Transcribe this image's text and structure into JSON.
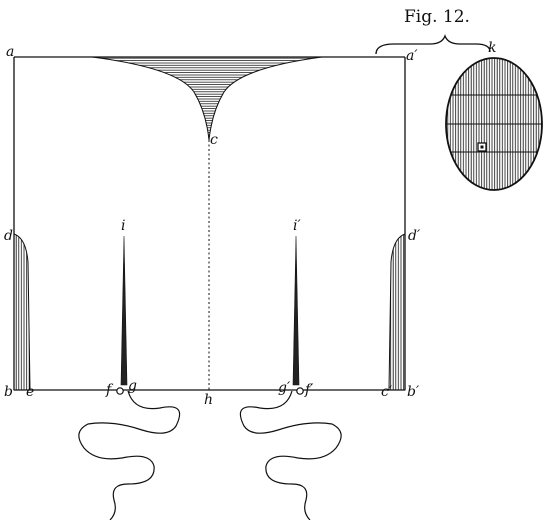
{
  "figure": {
    "title": "Fig. 12."
  },
  "labels": {
    "a": "a",
    "a_prime": "a′",
    "b": "b",
    "b_prime": "b′",
    "c": "c",
    "d": "d",
    "d_prime": "d′",
    "e": "e",
    "c_prime": "c′",
    "f": "f",
    "f_prime": "f′",
    "g": "g",
    "g_prime": "g′",
    "h": "h",
    "i": "i",
    "i_prime": "i′",
    "k": "k"
  },
  "colors": {
    "ink": "#111111",
    "paper": "#ffffff"
  }
}
